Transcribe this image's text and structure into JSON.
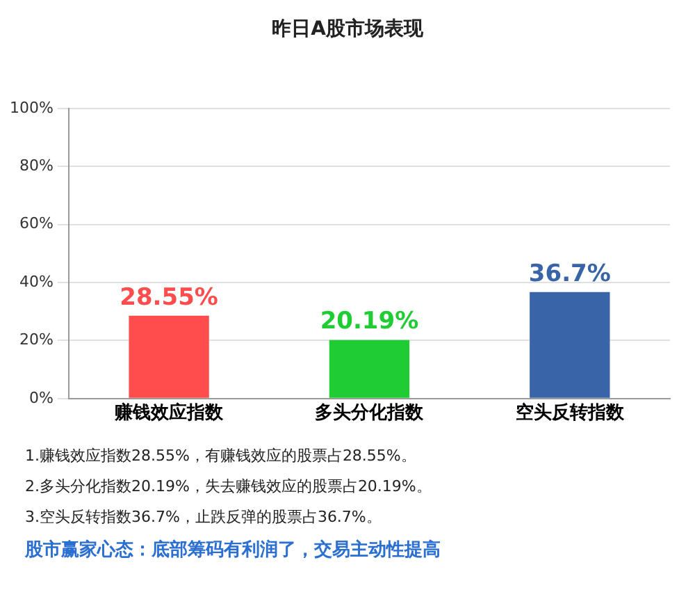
{
  "chart_data": {
    "type": "bar",
    "title": "昨日A股市场表现",
    "categories": [
      "赚钱效应指数",
      "多头分化指数",
      "空头反转指数"
    ],
    "values": [
      28.55,
      20.19,
      36.7
    ],
    "colors": [
      "#ff4d4d",
      "#1fcc33",
      "#3a64a8"
    ],
    "value_labels": [
      "28.55%",
      "20.19%",
      "36.7%"
    ],
    "ylim": [
      0,
      100
    ],
    "yticks": [
      {
        "value": 0,
        "label": "0%"
      },
      {
        "value": 20,
        "label": "20%"
      },
      {
        "value": 40,
        "label": "40%"
      },
      {
        "value": 60,
        "label": "60%"
      },
      {
        "value": 80,
        "label": "80%"
      },
      {
        "value": 100,
        "label": "100%"
      }
    ],
    "grid": "y",
    "legend": false,
    "annotations": [
      "1.赚钱效应指数28.55%，有赚钱效应的股票占28.55%。",
      "2.多头分化指数20.19%，失去赚钱效应的股票占20.19%。",
      "3.空头反转指数36.7%，止跌反弹的股票占36.7%。",
      "股市赢家心态：底部筹码有利润了，交易主动性提高"
    ]
  }
}
